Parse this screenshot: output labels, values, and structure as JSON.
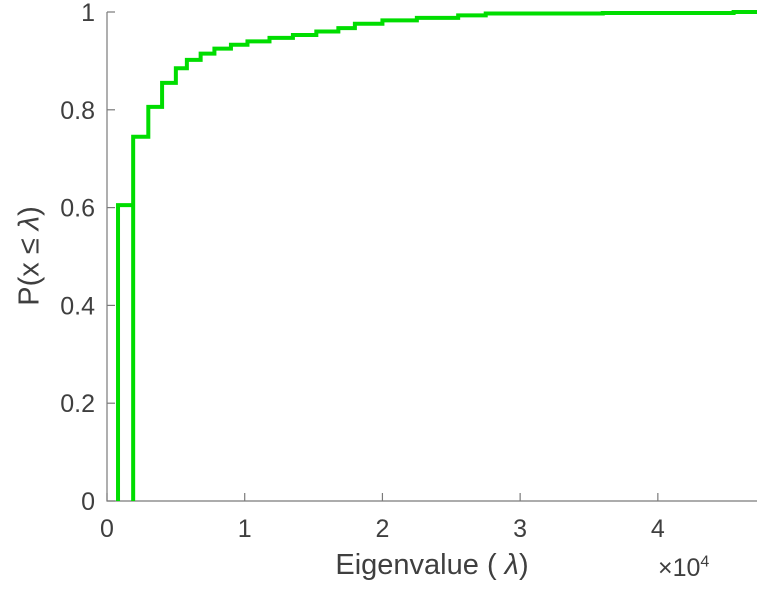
{
  "figure": {
    "background": "#ffffff"
  },
  "chart_data": {
    "type": "line",
    "subtype": "empirical-cdf-stairs",
    "title": "",
    "xlabel": "Eigenvalue ( λ)",
    "xlabel_parts": {
      "prefix": "Eigenvalue ( ",
      "lambda": "λ",
      "suffix": ")"
    },
    "ylabel": "P(x ≤ λ)",
    "ylabel_parts": {
      "prefix": "P(x ≤ ",
      "lambda": "λ",
      "suffix": ")"
    },
    "x_exponent_label": {
      "base": "×10",
      "power": "4"
    },
    "x_units_multiplier": 10000,
    "xlim": [
      0,
      4.72
    ],
    "ylim": [
      0,
      1
    ],
    "xticks": [
      0,
      1,
      2,
      3,
      4
    ],
    "xtick_labels": [
      "0",
      "1",
      "2",
      "3",
      "4"
    ],
    "yticks": [
      0,
      0.2,
      0.4,
      0.6,
      0.8,
      1
    ],
    "ytick_labels": [
      "0",
      "0.2",
      "0.4",
      "0.6",
      "0.8",
      "1"
    ],
    "grid": false,
    "legend": null,
    "line_color": "#00dd00",
    "line_width": 4,
    "axis_color": "#7a7a7a",
    "label_color": "#3f3f3f",
    "series": [
      {
        "name": "ecdf-lower-branch",
        "start_y": 0,
        "end_x": 0.19,
        "steps": [
          [
            0.08,
            0.605
          ]
        ]
      },
      {
        "name": "ecdf-main",
        "start_y": 0,
        "end_x": 4.72,
        "steps": [
          [
            0.19,
            0.745
          ],
          [
            0.3,
            0.806
          ],
          [
            0.4,
            0.855
          ],
          [
            0.5,
            0.885
          ],
          [
            0.58,
            0.902
          ],
          [
            0.68,
            0.915
          ],
          [
            0.78,
            0.925
          ],
          [
            0.9,
            0.933
          ],
          [
            1.02,
            0.94
          ],
          [
            1.18,
            0.947
          ],
          [
            1.35,
            0.953
          ],
          [
            1.52,
            0.96
          ],
          [
            1.68,
            0.967
          ],
          [
            1.8,
            0.976
          ],
          [
            2.0,
            0.983
          ],
          [
            2.25,
            0.988
          ],
          [
            2.55,
            0.993
          ],
          [
            2.75,
            0.997
          ],
          [
            3.6,
            0.998
          ],
          [
            4.55,
            1.0
          ]
        ]
      }
    ]
  }
}
